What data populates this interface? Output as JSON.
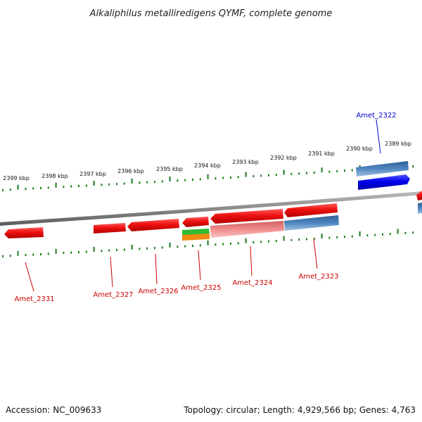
{
  "title": "Alkaliphilus metalliredigens QYMF, complete genome",
  "footer": {
    "accession": "Accession: NC_009633",
    "summary": "Topology: circular; Length: 4,929,566 bp; Genes: 4,763"
  },
  "colors": {
    "backbone": "#8a8a8a",
    "tick": "#1a7a1a",
    "cds_reverse": "#ee1111",
    "cds_forward": "#0000ee",
    "rna_band": "#4f86c0",
    "pink_band": "#f08c8c",
    "green_band": "#33bb33",
    "orange_band": "#f08c10",
    "label_forward": "#0000cc",
    "label_reverse": "#cc0000"
  },
  "scale_labels": [
    "2399 kbp",
    "2398 kbp",
    "2397 kbp",
    "2396 kbp",
    "2395 kbp",
    "2394 kbp",
    "2393 kbp",
    "2392 kbp",
    "2391 kbp",
    "2390 kbp",
    "2389 kbp"
  ],
  "genes": {
    "forward": [
      "Amet_2322"
    ],
    "reverse": [
      "Amet_2331",
      "Amet_2327",
      "Amet_2326",
      "Amet_2325",
      "Amet_2324",
      "Amet_2323"
    ]
  }
}
